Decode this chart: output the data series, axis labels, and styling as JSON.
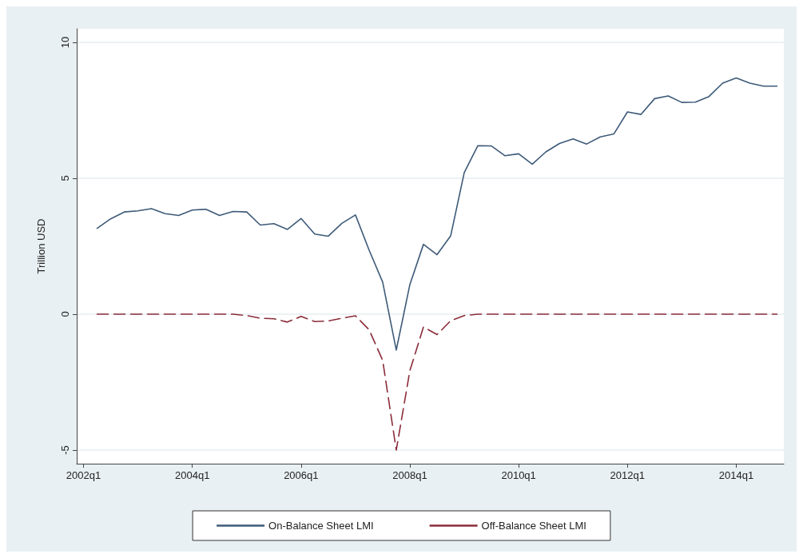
{
  "chart_data": {
    "type": "line",
    "ylabel": "Trillion USD",
    "categories": [
      "2002q1",
      null,
      null,
      null,
      null,
      null,
      null,
      null,
      "2004q1",
      null,
      null,
      null,
      null,
      null,
      null,
      null,
      "2006q1",
      null,
      null,
      null,
      null,
      null,
      null,
      null,
      "2008q1",
      null,
      null,
      null,
      null,
      null,
      null,
      null,
      "2010q1",
      null,
      null,
      null,
      null,
      null,
      null,
      null,
      "2012q1",
      null,
      null,
      null,
      null,
      null,
      null,
      null,
      "2014q1",
      null,
      null,
      null
    ],
    "series": [
      {
        "name": "On-Balance Sheet LMI",
        "color": "#3e5a78",
        "line_style": "solid",
        "values": [
          null,
          3.16,
          3.51,
          3.76,
          3.8,
          3.88,
          3.7,
          3.63,
          3.83,
          3.86,
          3.63,
          3.78,
          3.76,
          3.28,
          3.33,
          3.12,
          3.52,
          2.95,
          2.87,
          3.34,
          3.65,
          2.36,
          1.18,
          -1.32,
          1.09,
          2.57,
          2.19,
          2.88,
          5.21,
          6.2,
          6.19,
          5.83,
          5.9,
          5.52,
          5.97,
          6.28,
          6.45,
          6.26,
          6.52,
          6.63,
          7.44,
          7.35,
          7.93,
          8.03,
          7.79,
          7.8,
          8.01,
          8.5,
          8.69,
          8.5,
          8.39,
          8.39
        ]
      },
      {
        "name": "Off-Balance Sheet LMI",
        "color": "#8b2c3a",
        "line_style": "dashed",
        "values": [
          null,
          0,
          0,
          0,
          0,
          0,
          0,
          0,
          0,
          0,
          0,
          0,
          -0.05,
          -0.15,
          -0.17,
          -0.29,
          -0.08,
          -0.27,
          -0.25,
          -0.15,
          -0.06,
          -0.57,
          -1.7,
          -5.0,
          -2.08,
          -0.47,
          -0.75,
          -0.24,
          -0.05,
          0,
          0,
          0,
          0,
          0,
          0,
          0,
          0,
          0,
          0,
          0,
          0,
          0,
          0,
          0,
          0,
          0,
          0,
          0,
          0,
          0,
          0,
          0
        ]
      }
    ],
    "ylim": [
      -5.5,
      10.5
    ],
    "yticks": [
      -5,
      0,
      5,
      10
    ],
    "grid": "y",
    "legend": "bottom",
    "marker": "none"
  }
}
